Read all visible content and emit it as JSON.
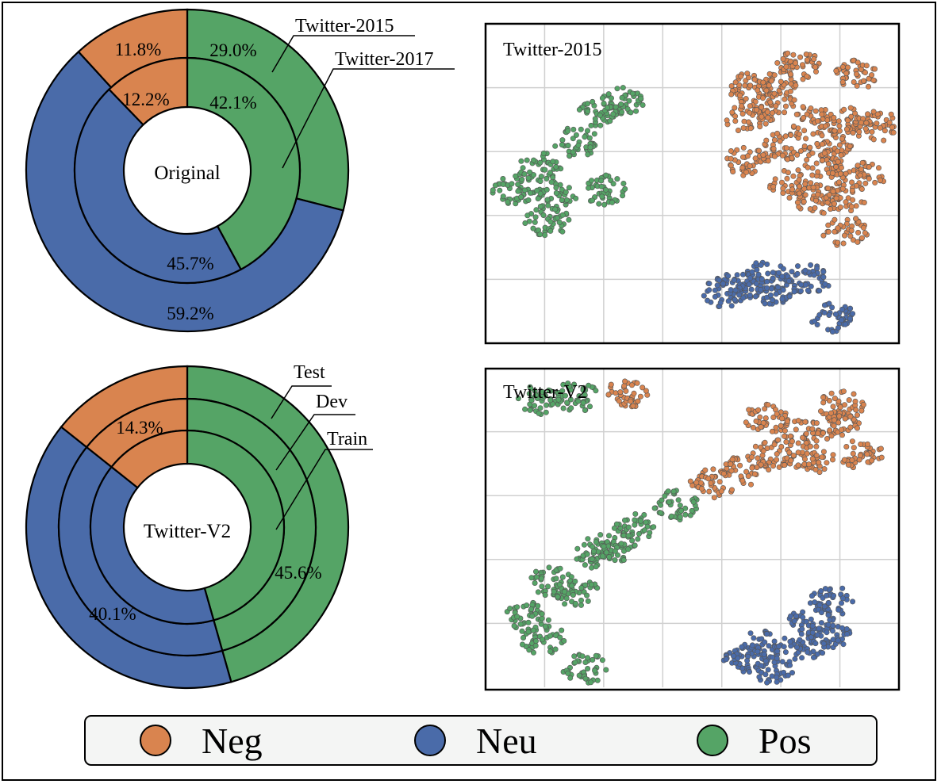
{
  "colors": {
    "neg": "#d9844f",
    "neu": "#4a6ba9",
    "pos": "#55a466"
  },
  "legend": [
    {
      "label": "Neg",
      "color": "#d9844f"
    },
    {
      "label": "Neu",
      "color": "#4a6ba9"
    },
    {
      "label": "Pos",
      "color": "#55a466"
    }
  ],
  "chart_data": [
    {
      "type": "pie",
      "variant": "nested-donut",
      "center_label": "Original",
      "ring_labels": [
        "Twitter-2015",
        "Twitter-2017"
      ],
      "categories": [
        "Neg",
        "Neu",
        "Pos"
      ],
      "series": [
        {
          "name": "Twitter-2015",
          "ring": "outer",
          "values": [
            11.8,
            59.2,
            29.0
          ],
          "labels": [
            "11.8%",
            "59.2%",
            "29.0%"
          ]
        },
        {
          "name": "Twitter-2017",
          "ring": "inner",
          "values": [
            12.2,
            45.7,
            42.1
          ],
          "labels": [
            "12.2%",
            "45.7%",
            "42.1%"
          ]
        }
      ]
    },
    {
      "type": "pie",
      "variant": "nested-donut",
      "center_label": "Twitter-V2",
      "ring_labels": [
        "Test",
        "Dev",
        "Train"
      ],
      "categories": [
        "Neg",
        "Neu",
        "Pos"
      ],
      "series": [
        {
          "name": "Test",
          "ring": "outer",
          "values": [
            14.3,
            40.1,
            45.6
          ],
          "labels": [
            "",
            "",
            ""
          ]
        },
        {
          "name": "Dev",
          "ring": "middle",
          "values": [
            14.3,
            40.1,
            45.6
          ],
          "labels": [
            "",
            "",
            ""
          ]
        },
        {
          "name": "Train",
          "ring": "inner",
          "values": [
            14.3,
            40.1,
            45.6
          ],
          "labels": [
            "14.3%",
            "40.1%",
            "45.6%"
          ]
        }
      ]
    },
    {
      "type": "scatter",
      "title": "Twitter-2015",
      "grid": true,
      "legend": "bottom",
      "xlim": [
        0,
        10
      ],
      "ylim": [
        0,
        10
      ],
      "clusters": [
        {
          "category": "Neg",
          "pts": [
            [
              6.4,
              8.0
            ],
            [
              7.0,
              7.4
            ],
            [
              7.9,
              7.0
            ],
            [
              8.3,
              6.2
            ],
            [
              7.3,
              6.2
            ],
            [
              8.8,
              6.9
            ],
            [
              8.2,
              5.6
            ],
            [
              9.1,
              5.2
            ],
            [
              7.0,
              8.2
            ],
            [
              8.0,
              4.5
            ],
            [
              8.7,
              4.6
            ],
            [
              6.3,
              7.1
            ],
            [
              8.7,
              3.5
            ],
            [
              9.0,
              8.4
            ],
            [
              6.3,
              5.7
            ],
            [
              7.4,
              5.0
            ],
            [
              9.5,
              6.8
            ],
            [
              7.6,
              8.7
            ]
          ]
        },
        {
          "category": "Pos",
          "pts": [
            [
              1.3,
              5.5
            ],
            [
              2.2,
              6.3
            ],
            [
              1.7,
              4.6
            ],
            [
              2.8,
              7.2
            ],
            [
              0.7,
              4.8
            ],
            [
              2.9,
              4.8
            ],
            [
              3.3,
              7.6
            ],
            [
              1.5,
              3.8
            ]
          ]
        },
        {
          "category": "Neu",
          "pts": [
            [
              6.2,
              1.8
            ],
            [
              7.1,
              1.6
            ],
            [
              6.8,
              2.1
            ],
            [
              7.8,
              2.0
            ],
            [
              8.4,
              0.8
            ],
            [
              5.8,
              1.6
            ]
          ]
        }
      ]
    },
    {
      "type": "scatter",
      "title": "Twitter-V2",
      "grid": true,
      "legend": "bottom",
      "xlim": [
        0,
        10
      ],
      "ylim": [
        0,
        10
      ],
      "clusters": [
        {
          "category": "Neg",
          "pts": [
            [
              7.6,
              8.0
            ],
            [
              8.5,
              8.2
            ],
            [
              7.0,
              7.3
            ],
            [
              9.1,
              7.3
            ],
            [
              6.3,
              6.8
            ],
            [
              7.9,
              7.1
            ],
            [
              5.5,
              6.4
            ],
            [
              8.6,
              8.8
            ],
            [
              3.4,
              9.2
            ],
            [
              6.8,
              8.4
            ]
          ]
        },
        {
          "category": "Pos",
          "pts": [
            [
              4.6,
              5.7
            ],
            [
              3.6,
              5.0
            ],
            [
              2.6,
              4.2
            ],
            [
              1.6,
              3.3
            ],
            [
              1.0,
              2.2
            ],
            [
              2.2,
              3.0
            ],
            [
              1.4,
              1.5
            ],
            [
              2.4,
              0.6
            ],
            [
              3.1,
              4.4
            ],
            [
              1.3,
              9.0
            ],
            [
              2.2,
              9.1
            ]
          ]
        },
        {
          "category": "Neu",
          "pts": [
            [
              7.9,
              2.1
            ],
            [
              8.3,
              1.7
            ],
            [
              7.7,
              1.3
            ],
            [
              6.7,
              1.3
            ],
            [
              6.3,
              0.9
            ],
            [
              6.9,
              0.6
            ],
            [
              8.4,
              2.7
            ]
          ]
        }
      ]
    }
  ]
}
